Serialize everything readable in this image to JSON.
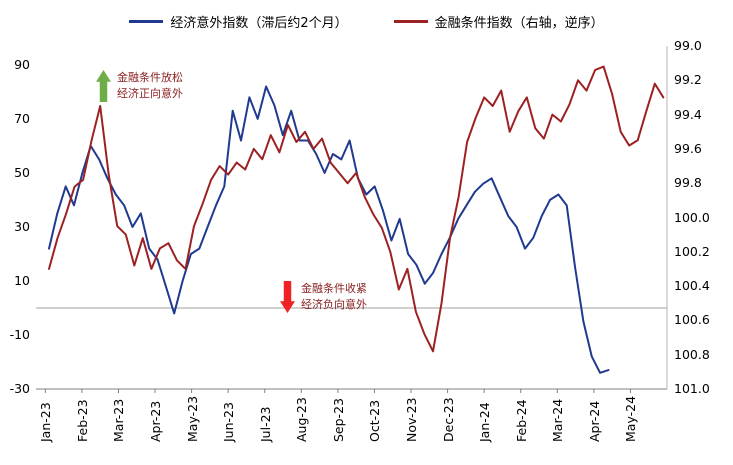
{
  "legend": [
    {
      "label": "经济意外指数（滞后约2个月）",
      "color": "#1f3a8f"
    },
    {
      "label": "金融条件指数（右轴，逆序）",
      "color": "#9c2123"
    }
  ],
  "annotations": {
    "loosen": {
      "line1": "金融条件放松",
      "line2": "经济正向意外",
      "arrow_color": "#6fae46",
      "text_color": "#8b2222"
    },
    "tighten": {
      "line1": "金融条件收紧",
      "line2": "经济负向意外",
      "arrow_color": "#ee2224",
      "text_color": "#8b2222"
    }
  },
  "chart_data": {
    "type": "line",
    "x_ticks": [
      "Jan-23",
      "Feb-23",
      "Mar-23",
      "Apr-23",
      "May-23",
      "Jun-23",
      "Jul-23",
      "Aug-23",
      "Sep-23",
      "Oct-23",
      "Nov-23",
      "Dec-23",
      "Jan-24",
      "Feb-24",
      "Mar-24",
      "Apr-24",
      "May-24"
    ],
    "left_axis": {
      "ticks": [
        90,
        70,
        50,
        30,
        10,
        -10,
        -30
      ],
      "range": [
        -30,
        97
      ]
    },
    "right_axis": {
      "ticks": [
        "99.0",
        "99.2",
        "99.4",
        "99.6",
        "99.8",
        "100.0",
        "100.2",
        "100.4",
        "100.6",
        "100.8",
        "101.0"
      ],
      "range": [
        99.0,
        101.0
      ],
      "inverted": true
    },
    "zero_line_left_value": 0,
    "grid": "off",
    "legend_position": "top-center",
    "series": [
      {
        "name": "经济意外指数（滞后约2个月）",
        "axis": "left",
        "color": "#1f3a8f",
        "start_month": 0.1,
        "end_month": 15.4,
        "values": [
          22,
          35,
          45,
          38,
          50,
          60,
          55,
          48,
          42,
          38,
          30,
          35,
          22,
          18,
          8,
          -2,
          10,
          20,
          22,
          30,
          38,
          45,
          73,
          62,
          78,
          70,
          82,
          75,
          64,
          73,
          62,
          62,
          57,
          50,
          57,
          55,
          62,
          48,
          42,
          45,
          36,
          25,
          33,
          20,
          16,
          9,
          13,
          20,
          26,
          33,
          38,
          43,
          46,
          48,
          41,
          34,
          30,
          22,
          26,
          34,
          40,
          42,
          38,
          15,
          -5,
          -18,
          -24,
          -23
        ]
      },
      {
        "name": "金融条件指数（右轴，逆序）",
        "axis": "right",
        "color": "#9c2123",
        "start_month": 0.1,
        "end_month": 16.9,
        "values": [
          100.3,
          100.12,
          99.98,
          99.82,
          99.78,
          99.55,
          99.35,
          99.75,
          100.05,
          100.1,
          100.28,
          100.12,
          100.3,
          100.18,
          100.15,
          100.25,
          100.3,
          100.05,
          99.92,
          99.78,
          99.7,
          99.75,
          99.68,
          99.72,
          99.6,
          99.66,
          99.52,
          99.62,
          99.46,
          99.56,
          99.5,
          99.6,
          99.54,
          99.68,
          99.74,
          99.8,
          99.74,
          99.88,
          99.98,
          100.06,
          100.2,
          100.42,
          100.3,
          100.55,
          100.68,
          100.78,
          100.5,
          100.12,
          99.88,
          99.56,
          99.42,
          99.3,
          99.35,
          99.26,
          99.5,
          99.38,
          99.3,
          99.48,
          99.54,
          99.4,
          99.44,
          99.34,
          99.2,
          99.26,
          99.14,
          99.12,
          99.28,
          99.5,
          99.58,
          99.55,
          99.38,
          99.22,
          99.3
        ]
      }
    ]
  }
}
